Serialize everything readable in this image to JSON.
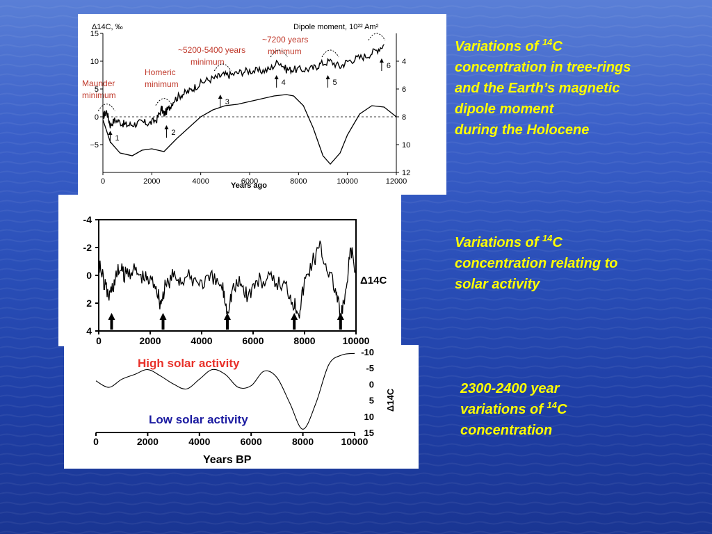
{
  "chart_data": [
    {
      "type": "line",
      "ylabel_left": "Δ14C, ‰",
      "ylabel_right": "Dipole moment, 10²² Am²",
      "xlabel": "Years ago",
      "x_ticks": [
        "0",
        "2000",
        "4000",
        "6000",
        "8000",
        "10000",
        "12000"
      ],
      "y_ticks_left": [
        "15",
        "10",
        "5",
        "0",
        "−5"
      ],
      "y_ticks_right": [
        "4",
        "6",
        "8",
        "10",
        "12"
      ],
      "xlim": [
        0,
        12000
      ],
      "ylim_left": [
        -10,
        15
      ],
      "ylim_right": [
        12,
        2
      ],
      "series": [
        {
          "key": "c14",
          "x": [
            0,
            150,
            300,
            500,
            800,
            1000,
            1300,
            1600,
            1900,
            2200,
            2400,
            2500,
            2700,
            2900,
            3200,
            3500,
            3800,
            4200,
            4600,
            4900,
            5200,
            5600,
            6000,
            6400,
            6800,
            7200,
            7500,
            7800,
            8200,
            8600,
            8900,
            9300,
            9700,
            10000,
            10400,
            10800,
            11200,
            11500
          ],
          "y": [
            0,
            1,
            -1.5,
            -0.5,
            -1.2,
            -1.5,
            -1.3,
            -1.0,
            -1.2,
            -0.5,
            1.5,
            0.5,
            1.5,
            3,
            4,
            4.5,
            5.5,
            6.5,
            7,
            7.5,
            7.5,
            8,
            8.3,
            8.2,
            8.5,
            10,
            8.5,
            8.5,
            8.5,
            8.7,
            9.5,
            10,
            9,
            10,
            10.5,
            11,
            12,
            13
          ]
        },
        {
          "key": "dipole",
          "x": [
            0,
            300,
            700,
            1200,
            1600,
            2000,
            2500,
            3000,
            3500,
            4000,
            4500,
            5000,
            5500,
            6000,
            6500,
            7000,
            7500,
            7800,
            8200,
            8600,
            9000,
            9300,
            9700,
            10000,
            10500,
            11000,
            11500,
            12000
          ],
          "y": [
            8.2,
            9.8,
            10.6,
            10.8,
            10.4,
            10.3,
            10.5,
            9.6,
            8.8,
            8.0,
            7.5,
            7.2,
            7.1,
            6.9,
            6.7,
            6.5,
            6.4,
            6.5,
            7.2,
            8.8,
            10.8,
            11.4,
            10.6,
            9.3,
            7.8,
            7.2,
            7.3,
            8.0
          ]
        }
      ],
      "markers": [
        "1",
        "2",
        "3",
        "4",
        "5",
        "6"
      ],
      "annotations": {
        "maunder": [
          "Maunder",
          "minimum"
        ],
        "homeric": [
          "Homeric",
          "minimum"
        ],
        "m5200": [
          "~5200-5400 years",
          "minimum"
        ],
        "m7200": [
          "~7200 years",
          "minimum"
        ]
      }
    },
    {
      "type": "line",
      "ylabel": "Δ14C",
      "x_ticks": [
        "0",
        "2000",
        "4000",
        "6000",
        "8000",
        "10000"
      ],
      "y_ticks": [
        "-4",
        "-2",
        "0",
        "2",
        "4"
      ],
      "xlim": [
        0,
        10000
      ],
      "ylim": [
        4,
        -4
      ],
      "series": [
        {
          "key": "solar",
          "x": [
            0,
            200,
            400,
            600,
            800,
            1000,
            1300,
            1600,
            1900,
            2200,
            2400,
            2600,
            2900,
            3200,
            3600,
            4000,
            4400,
            4800,
            5000,
            5200,
            5500,
            5800,
            6100,
            6500,
            6900,
            7300,
            7600,
            7800,
            8000,
            8300,
            8600,
            8900,
            9200,
            9400,
            9600,
            9800,
            10000
          ],
          "y": [
            -1,
            0.5,
            1.5,
            0.5,
            -0.5,
            0,
            -0.5,
            0,
            0.3,
            0.5,
            2,
            0.8,
            0,
            0.3,
            0.2,
            0.5,
            0.3,
            0.8,
            2.5,
            1,
            0.5,
            1.5,
            0.5,
            0.3,
            0.5,
            0.8,
            2,
            2.5,
            0.5,
            -1,
            -2,
            -0.5,
            1,
            3,
            1.5,
            -2,
            0
          ]
        }
      ],
      "arrow_x": [
        500,
        2500,
        5000,
        7600,
        9400
      ]
    },
    {
      "type": "line",
      "xlabel": "Years BP",
      "ylabel": "Δ14C",
      "x_ticks": [
        "0",
        "2000",
        "4000",
        "6000",
        "8000",
        "10000"
      ],
      "y_ticks": [
        "-10",
        "-5",
        "0",
        "5",
        "10",
        "15"
      ],
      "xlim": [
        0,
        10000
      ],
      "ylim": [
        -10,
        15
      ],
      "series": [
        {
          "key": "cycle",
          "x": [
            0,
            500,
            1000,
            1500,
            2000,
            2500,
            3000,
            3500,
            4000,
            4500,
            5000,
            5500,
            6000,
            6500,
            7000,
            7500,
            8000,
            8500,
            9000,
            9500,
            10000
          ],
          "y": [
            -1,
            1,
            -1.5,
            -3,
            -4.5,
            -2.5,
            0,
            1.5,
            -1.5,
            -4.5,
            -3,
            1,
            0.5,
            -4,
            -2,
            6,
            14,
            6,
            -6,
            -9,
            -9.5
          ]
        }
      ],
      "labels": {
        "high": "High solar activity",
        "low": "Low solar activity"
      }
    }
  ],
  "captions": {
    "cap1": [
      "Variations of ",
      "14",
      "C",
      "concentration in tree-rings",
      "and the Earth’s magnetic",
      "dipole moment",
      "during the Holocene"
    ],
    "cap2": [
      "Variations of ",
      "14",
      "C",
      "concentration relating to",
      "solar activity"
    ],
    "cap3": [
      "2300-2400 year",
      "variations of ",
      "14",
      "C",
      "concentration"
    ]
  }
}
